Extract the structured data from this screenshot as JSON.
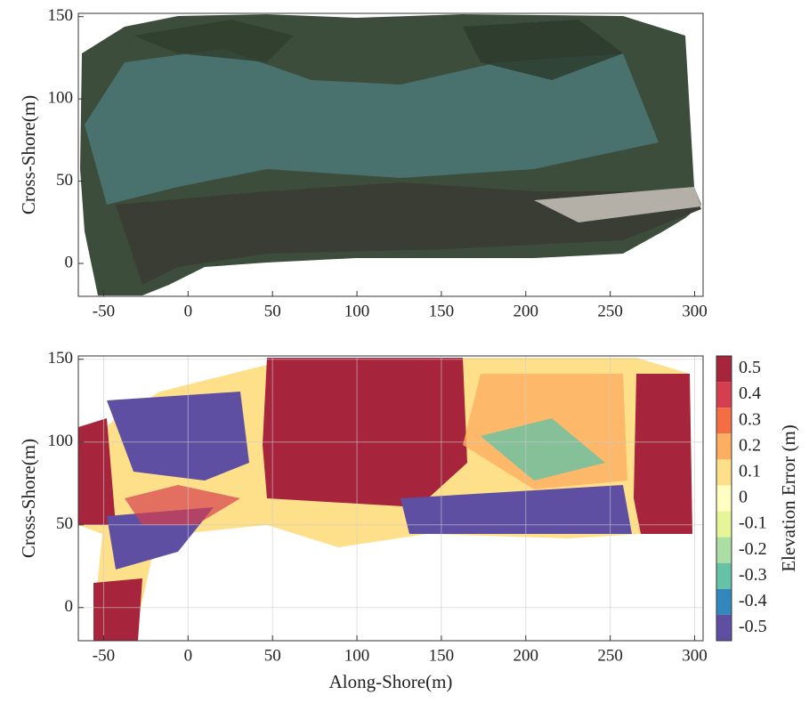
{
  "chart_data": [
    {
      "type": "image",
      "ylabel": "Cross-Shore(m)",
      "xlim": [
        -65,
        305
      ],
      "xticks": [
        -50,
        0,
        50,
        100,
        150,
        200,
        250,
        300
      ],
      "ylim": [
        -20,
        152
      ],
      "yticks": [
        0,
        50,
        100,
        150
      ],
      "grid": false
    },
    {
      "type": "heatmap",
      "xlabel": "Along-Shore(m)",
      "ylabel": "Cross-Shore(m)",
      "xlim": [
        -65,
        305
      ],
      "xticks": [
        -50,
        0,
        50,
        100,
        150,
        200,
        250,
        300
      ],
      "ylim": [
        -20,
        152
      ],
      "yticks": [
        0,
        50,
        100,
        150
      ],
      "grid": true,
      "colorbar": {
        "label": "Elevation Error (m)",
        "lim": [
          -0.55,
          0.55
        ],
        "ticks": [
          0.5,
          0.4,
          0.3,
          0.2,
          0.1,
          0,
          -0.1,
          -0.2,
          -0.3,
          -0.4,
          -0.5
        ],
        "colors": [
          "#a6243c",
          "#d53e4f",
          "#f46d43",
          "#fdae61",
          "#fee08b",
          "#ffffbf",
          "#e6f598",
          "#abdda4",
          "#66c2a5",
          "#3288bd",
          "#5e4fa2"
        ]
      }
    }
  ]
}
